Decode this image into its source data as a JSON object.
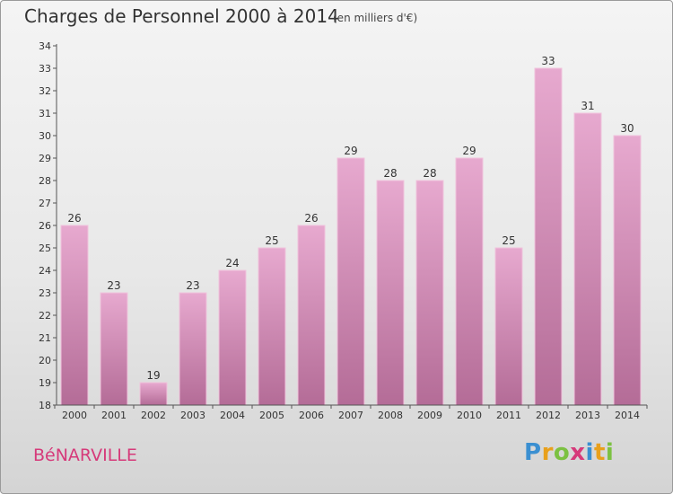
{
  "chart_data": {
    "type": "bar",
    "title": "Charges de Personnel 2000 à 2014",
    "subtitle": "(en milliers d'€)",
    "categories": [
      "2000",
      "2001",
      "2002",
      "2003",
      "2004",
      "2005",
      "2006",
      "2007",
      "2008",
      "2009",
      "2010",
      "2011",
      "2012",
      "2013",
      "2014"
    ],
    "values": [
      26,
      23,
      19,
      23,
      24,
      25,
      26,
      29,
      28,
      28,
      29,
      25,
      33,
      31,
      30
    ],
    "ylim": [
      18,
      34
    ],
    "yticks": [
      18,
      19,
      20,
      21,
      22,
      23,
      24,
      25,
      26,
      27,
      28,
      29,
      30,
      31,
      32,
      33,
      34
    ],
    "xlabel": "",
    "ylabel": "",
    "grid": false,
    "legend": "none"
  },
  "commune": "BéNARVILLE",
  "brand": {
    "letters": [
      "P",
      "r",
      "o",
      "x",
      "i",
      "t",
      "i"
    ],
    "colors": [
      "#3a8fd1",
      "#e8a01c",
      "#7cc142",
      "#d63a7a",
      "#3a8fd1",
      "#e8a01c",
      "#7cc142"
    ]
  },
  "colors": {
    "bar_fill_top": "#e7a9cf",
    "bar_fill_bottom": "#b46c97",
    "bar_stroke": "#f0c3dc",
    "axis": "#555555",
    "accent": "#d63a7a"
  }
}
